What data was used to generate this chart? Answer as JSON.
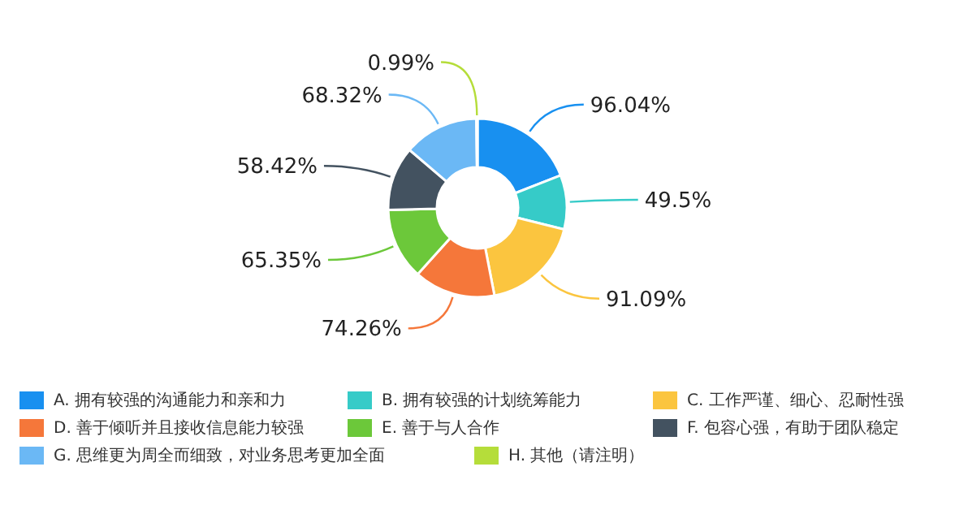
{
  "chart_data": {
    "type": "donut",
    "categories": [
      "A. 拥有较强的沟通能力和亲和力",
      "B. 拥有较强的计划统筹能力",
      "C. 工作严谨、细心、忍耐性强",
      "D. 善于倾听并且接收信息能力较强",
      "E. 善于与人合作",
      "F. 包容心强，有助于团队稳定",
      "G. 思维更为周全而细致，对业务思考更加全面",
      "H. 其他（请注明）"
    ],
    "values": [
      96.04,
      49.5,
      91.09,
      74.26,
      65.35,
      58.42,
      68.32,
      0.99
    ],
    "value_labels": [
      "96.04%",
      "49.5%",
      "91.09%",
      "74.26%",
      "65.35%",
      "58.42%",
      "68.32%",
      "0.99%"
    ],
    "colors": [
      "#1890f0",
      "#36cbc8",
      "#fbc53f",
      "#f5773a",
      "#6cc83a",
      "#435260",
      "#6bb8f5",
      "#b5dd3a"
    ],
    "legend": "bottom"
  }
}
